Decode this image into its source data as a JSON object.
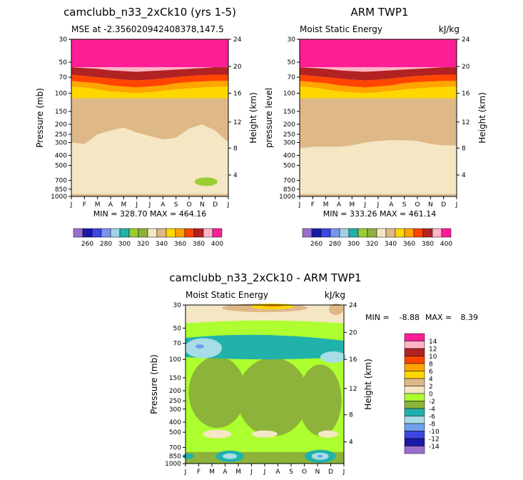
{
  "chart_data": [
    {
      "type": "heatmap",
      "title": "camclubb_n33_2xCk10 (yrs 1-5)",
      "subtitle_left": "MSE at -2.356020942408378,147.5",
      "ylabel": "Pressure (mb)",
      "ylabel_right": "Height (km)",
      "x_ticks": [
        "J",
        "F",
        "M",
        "A",
        "M",
        "J",
        "J",
        "A",
        "S",
        "O",
        "N",
        "D",
        "J"
      ],
      "y_ticks": [
        "30",
        "50",
        "70",
        "100",
        "150",
        "200",
        "250",
        "300",
        "400",
        "500",
        "700",
        "850",
        "1000"
      ],
      "height_ticks": [
        "24",
        "20",
        "16",
        "12",
        "8",
        "4"
      ],
      "stats": "MIN = 328.70 MAX = 464.16",
      "min": 328.7,
      "max": 464.16,
      "regions": [
        {
          "level": 400,
          "color": "#ff1e96",
          "desc": "30-55 mb"
        },
        {
          "level": 390,
          "color": "#ffb4c8",
          "desc": "~55-60 mb"
        },
        {
          "level": 380,
          "color": "#b22222",
          "desc": "~60-70 mb"
        },
        {
          "level": 370,
          "color": "#ff4500",
          "desc": "~70-80 mb"
        },
        {
          "level": 360,
          "color": "#ffa500",
          "desc": "~80-90 mb"
        },
        {
          "level": 350,
          "color": "#ffd700",
          "desc": "~90-110 mb"
        },
        {
          "level": 340,
          "color": "#deb887",
          "desc": "110-300 mb"
        },
        {
          "level": 330,
          "color": "#f5e6c4",
          "desc": "300-1000 mb"
        },
        {
          "level": 320,
          "color": "#9acd32",
          "desc": "small blob near 700 mb, Oct-Nov"
        }
      ]
    },
    {
      "type": "heatmap",
      "title": "ARM TWP1",
      "subtitle_left": "Moist Static Energy",
      "subtitle_right": "kJ/kg",
      "ylabel": "pressure level",
      "ylabel_right": "Height (km)",
      "x_ticks": [
        "J",
        "F",
        "M",
        "A",
        "M",
        "J",
        "J",
        "A",
        "S",
        "O",
        "N",
        "D",
        "J"
      ],
      "y_ticks": [
        "30",
        "50",
        "70",
        "100",
        "150",
        "200",
        "250",
        "300",
        "400",
        "500",
        "700",
        "850",
        "1000"
      ],
      "height_ticks": [
        "24",
        "20",
        "16",
        "12",
        "8",
        "4"
      ],
      "stats": "MIN = 333.26 MAX = 461.14",
      "min": 333.26,
      "max": 461.14
    },
    {
      "type": "heatmap",
      "title": "camclubb_n33_2xCk10 - ARM TWP1",
      "subtitle_left": "Moist Static Energy",
      "subtitle_right": "kJ/kg",
      "ylabel": "Pressure (mb)",
      "ylabel_right": "Height (km)",
      "x_ticks": [
        "J",
        "F",
        "M",
        "A",
        "M",
        "J",
        "J",
        "A",
        "S",
        "O",
        "N",
        "D",
        "J"
      ],
      "y_ticks": [
        "30",
        "50",
        "70",
        "100",
        "150",
        "200",
        "250",
        "300",
        "400",
        "500",
        "700",
        "850",
        "1000"
      ],
      "height_ticks": [
        "24",
        "20",
        "16",
        "12",
        "8",
        "4"
      ],
      "stats_min_label": "MIN =",
      "stats_min": "-8.88",
      "stats_max_label": "MAX =",
      "stats_max": "8.39",
      "min": -8.88,
      "max": 8.39
    }
  ],
  "colorbar_top": {
    "labels": [
      "260",
      "280",
      "300",
      "320",
      "340",
      "360",
      "380",
      "400"
    ],
    "colors": [
      "#9b6fcf",
      "#1a1aa6",
      "#3c46e0",
      "#7896f0",
      "#a0d2e6",
      "#20b2aa",
      "#9acd32",
      "#8db33a",
      "#f5e6c4",
      "#deb887",
      "#ffd700",
      "#ffa500",
      "#ff4500",
      "#b22222",
      "#ffb4c8",
      "#ff1e96"
    ]
  },
  "colorbar_diff": {
    "labels": [
      "14",
      "12",
      "10",
      "8",
      "6",
      "4",
      "2",
      "0",
      "-2",
      "-4",
      "-6",
      "-8",
      "-10",
      "-12",
      "-14"
    ],
    "colors": [
      "#ff1e96",
      "#ffb4c8",
      "#b22222",
      "#ff4500",
      "#ffa500",
      "#ffd700",
      "#deb887",
      "#f5e6c4",
      "#adff2f",
      "#8db33a",
      "#20b2aa",
      "#a8dce6",
      "#6fa0f0",
      "#3c46e0",
      "#1a1aa6",
      "#9b6fcf"
    ]
  }
}
